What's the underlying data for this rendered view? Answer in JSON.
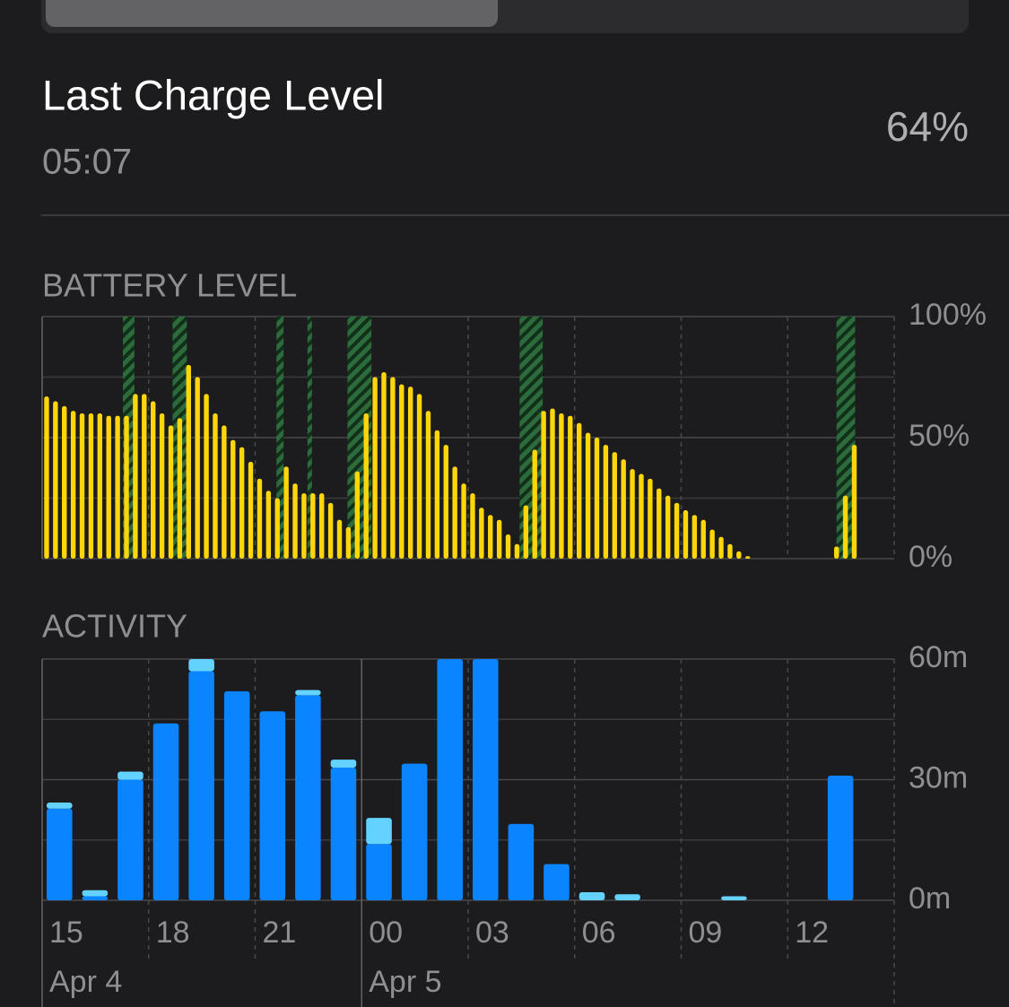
{
  "header": {
    "title": "Last Charge Level",
    "time": "05:07",
    "level": "64%"
  },
  "chart_data": [
    {
      "type": "bar",
      "title": "BATTERY LEVEL",
      "color": "#ffd60a",
      "charging_color": "#2e6b3c",
      "values": [
        67,
        65,
        63,
        61,
        60,
        60,
        60,
        59,
        59,
        59,
        68,
        68,
        65,
        60,
        55,
        58,
        80,
        75,
        68,
        60,
        55,
        49,
        46,
        40,
        33,
        28,
        25,
        38,
        31,
        27,
        27,
        27,
        23,
        16,
        13,
        36,
        60,
        75,
        77,
        75,
        72,
        71,
        68,
        61,
        53,
        47,
        38,
        31,
        27,
        21,
        18,
        16,
        10,
        6,
        22,
        45,
        61,
        62,
        60,
        59,
        56,
        52,
        50,
        47,
        44,
        41,
        37,
        35,
        33,
        29,
        26,
        23,
        20,
        18,
        16,
        12,
        9,
        6,
        3,
        1,
        null,
        null,
        null,
        null,
        null,
        null,
        null,
        null,
        null,
        5,
        26,
        47,
        null,
        null,
        null,
        null
      ],
      "charging": [
        [
          9.1,
          10.4
        ],
        [
          14.7,
          16.3
        ],
        [
          26.4,
          27.2
        ],
        [
          29.9,
          30.4
        ],
        [
          34.4,
          37.1
        ],
        [
          53.8,
          56.4
        ],
        [
          89.5,
          91.6
        ]
      ],
      "ylim": [
        0,
        100
      ],
      "yticks": [
        {
          "value": 0,
          "label": "0%"
        },
        {
          "value": 50,
          "label": "50%"
        },
        {
          "value": 100,
          "label": "100%"
        }
      ],
      "minor_grid": [
        25,
        75
      ]
    },
    {
      "type": "stacked_bar",
      "title": "ACTIVITY",
      "categories": [
        "15",
        null,
        null,
        "18",
        null,
        null,
        "21",
        null,
        null,
        "00",
        null,
        null,
        "03",
        null,
        null,
        "06",
        null,
        null,
        "09",
        null,
        null,
        "12",
        null,
        null
      ],
      "dates": [
        "Apr 4",
        null,
        null,
        null,
        null,
        null,
        null,
        null,
        null,
        "Apr 5",
        null,
        null,
        null,
        null,
        null,
        null,
        null,
        null,
        null,
        null,
        null,
        null,
        null,
        null
      ],
      "series": [
        {
          "color": "#0a84ff",
          "values": [
            22.8,
            1,
            30,
            44,
            57,
            52,
            47,
            51,
            33,
            14,
            34,
            60,
            60,
            19,
            9,
            0,
            0,
            0,
            0,
            0,
            0,
            0,
            31,
            0
          ]
        },
        {
          "color": "#64d2ff",
          "values": [
            1.5,
            1.5,
            2,
            0,
            3,
            0,
            0,
            1.3,
            2,
            6.5,
            0,
            0,
            0,
            0,
            0,
            2,
            1.5,
            0,
            0,
            1,
            0,
            0,
            0,
            0
          ]
        }
      ],
      "ylim": [
        0,
        60
      ],
      "yticks": [
        {
          "value": 0,
          "label": "0m"
        },
        {
          "value": 30,
          "label": "30m"
        },
        {
          "value": 60,
          "label": "60m"
        }
      ],
      "minor_grid": [
        15,
        45
      ]
    }
  ]
}
